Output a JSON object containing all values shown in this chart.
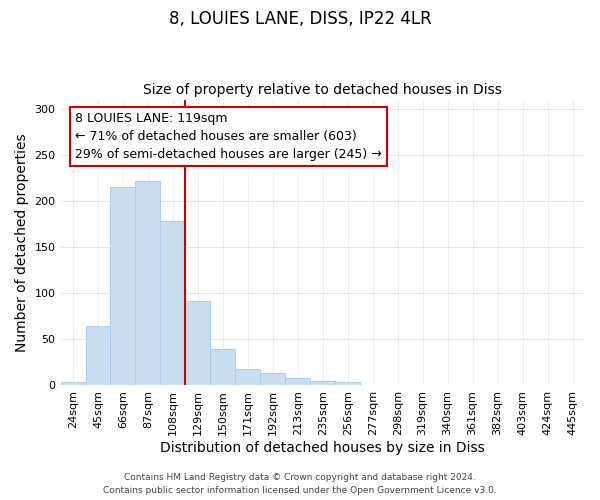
{
  "title": "8, LOUIES LANE, DISS, IP22 4LR",
  "subtitle": "Size of property relative to detached houses in Diss",
  "xlabel": "Distribution of detached houses by size in Diss",
  "ylabel": "Number of detached properties",
  "bar_labels": [
    "24sqm",
    "45sqm",
    "66sqm",
    "87sqm",
    "108sqm",
    "129sqm",
    "150sqm",
    "171sqm",
    "192sqm",
    "213sqm",
    "235sqm",
    "256sqm",
    "277sqm",
    "298sqm",
    "319sqm",
    "340sqm",
    "361sqm",
    "382sqm",
    "403sqm",
    "424sqm",
    "445sqm"
  ],
  "bar_values": [
    4,
    65,
    215,
    222,
    178,
    92,
    39,
    18,
    14,
    8,
    5,
    4,
    0,
    1,
    0,
    0,
    0,
    0,
    0,
    0,
    1
  ],
  "bar_color": "#c9ddf0",
  "bar_edge_color": "#a8c8e8",
  "vline_x": 4.5,
  "vline_color": "#cc0000",
  "annotation_text": "8 LOUIES LANE: 119sqm\n← 71% of detached houses are smaller (603)\n29% of semi-detached houses are larger (245) →",
  "ylim": [
    0,
    310
  ],
  "grid_color": "#dde8f0",
  "footer1": "Contains HM Land Registry data © Crown copyright and database right 2024.",
  "footer2": "Contains public sector information licensed under the Open Government Licence v3.0.",
  "title_fontsize": 12,
  "subtitle_fontsize": 10,
  "axis_label_fontsize": 10,
  "tick_fontsize": 8,
  "annotation_fontsize": 9
}
